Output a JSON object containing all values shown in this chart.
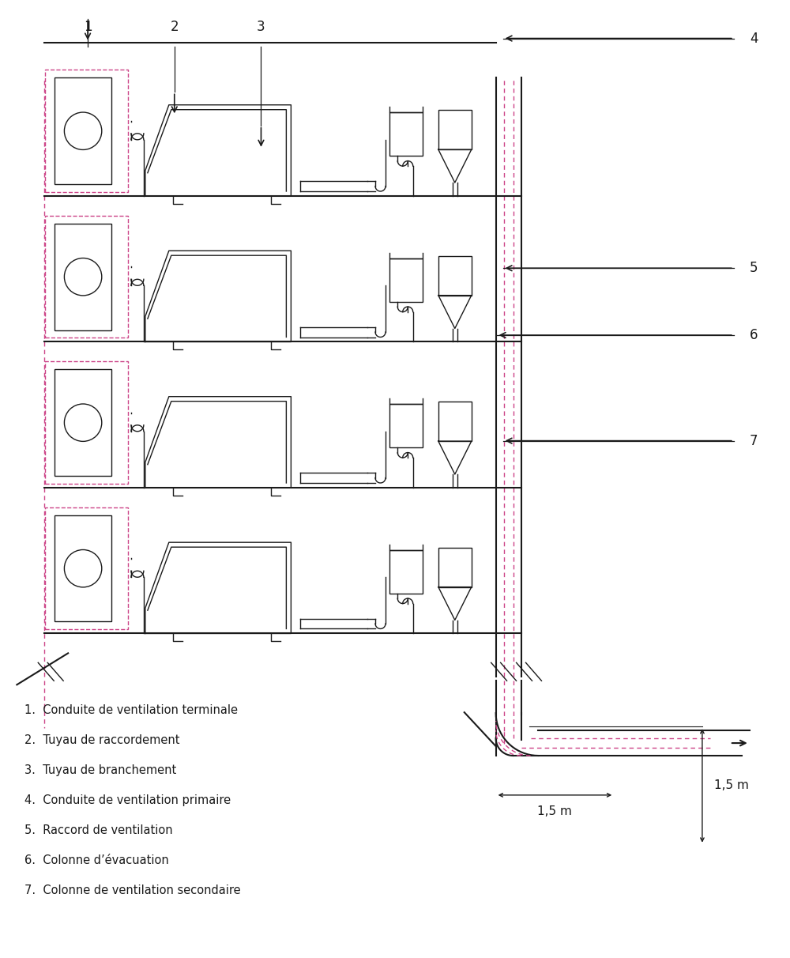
{
  "bg_color": "#ffffff",
  "line_color": "#1a1a1a",
  "dashed_color": "#cc4488",
  "legend_items": [
    "1.  Conduite de ventilation terminale",
    "2.  Tuyau de raccordement",
    "3.  Tuyau de branchement",
    "4.  Conduite de ventilation primaire",
    "5.  Raccord de ventilation",
    "6.  Colonne d’évacuation",
    "7.  Colonne de ventilation secondaire"
  ],
  "dim_label_h": "1,5 m",
  "dim_label_v": "1,5 m"
}
